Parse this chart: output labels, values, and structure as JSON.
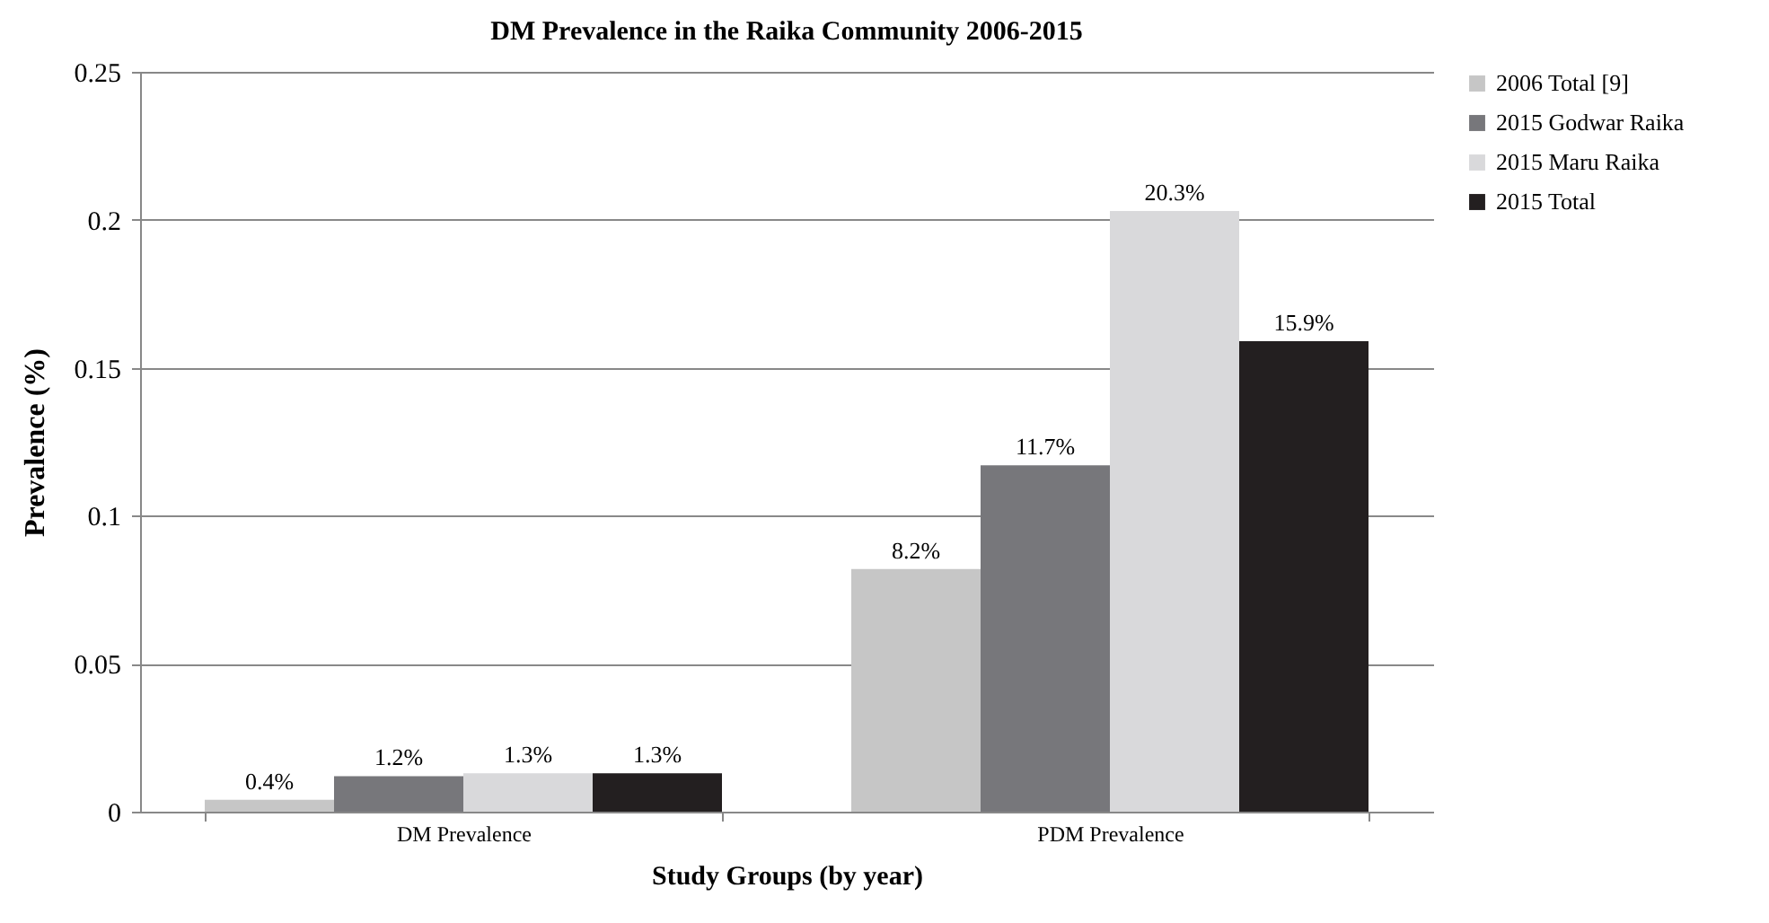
{
  "chart_data": {
    "type": "bar",
    "title": "DM Prevalence in the Raika Community 2006-2015",
    "xlabel": "Study Groups (by year)",
    "ylabel": "Prevalence (%)",
    "categories": [
      "DM Prevalence",
      "PDM Prevalence"
    ],
    "series": [
      {
        "name": "2006 Total [9]",
        "color": "#c6c6c6",
        "values": [
          0.004,
          0.082
        ],
        "value_labels": [
          "0.4%",
          "8.2%"
        ]
      },
      {
        "name": "2015 Godwar Raika",
        "color": "#77777b",
        "values": [
          0.012,
          0.117
        ],
        "value_labels": [
          "1.2%",
          "11.7%"
        ]
      },
      {
        "name": "2015 Maru Raika",
        "color": "#d9d9db",
        "values": [
          0.013,
          0.203
        ],
        "value_labels": [
          "1.3%",
          "20.3%"
        ]
      },
      {
        "name": "2015 Total",
        "color": "#231f20",
        "values": [
          0.013,
          0.159
        ],
        "value_labels": [
          "1.3%",
          "15.9%"
        ]
      }
    ],
    "ylim": [
      0,
      0.25
    ],
    "yticks": [
      0,
      0.05,
      0.1,
      0.15,
      0.2,
      0.25
    ],
    "grid": "y",
    "legend": "right"
  }
}
